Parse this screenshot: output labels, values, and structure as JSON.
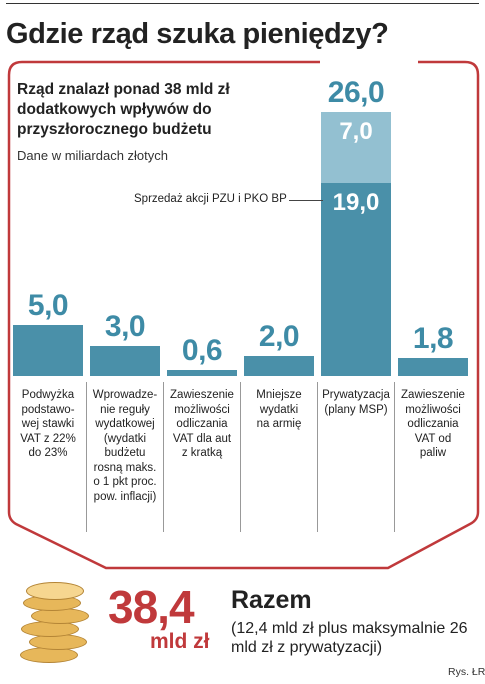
{
  "title": "Gdzie rząd szuka pieniędzy?",
  "subtitle": "Rząd znalazł ponad 38 mld zł dodatkowych wpływów do przyszłorocznego budżetu",
  "unit_note": "Dane w miliardach złotych",
  "colors": {
    "bar": "#4a90a9",
    "bar_light": "#93c0d1",
    "frame": "#c0393b",
    "value_text": "#3e8ba6",
    "coins": "#e7b75a"
  },
  "chart_data": {
    "type": "bar",
    "categories": [
      "Podwyżka podstawowej stawki VAT z 22% do 23%",
      "Wprowadzenie reguły wydatkowej (wydatki budżetu rosną maks. o 1 pkt proc. pow. inflacji)",
      "Zawieszenie możliwości odliczania VAT dla aut z kratką",
      "Mniejsze wydatki na armię",
      "Prywatyzacja (plany MSP)",
      "Zawieszenie możliwości odliczania VAT od paliw"
    ],
    "category_lines": [
      [
        "Podwyżka",
        "podstawo-",
        "wej stawki",
        "VAT z 22%",
        "do 23%"
      ],
      [
        "Wprowadze-",
        "nie reguły",
        "wydatkowej",
        "(wydatki",
        "budżetu",
        "rosną maks.",
        "o 1 pkt proc.",
        "pow. inflacji)"
      ],
      [
        "Zawieszenie",
        "możliwości",
        "odliczania",
        "VAT dla aut",
        "z kratką"
      ],
      [
        "Mniejsze",
        "wydatki",
        "na armię"
      ],
      [
        "Prywatyzacja",
        "(plany MSP)"
      ],
      [
        "Zawieszenie",
        "możliwości",
        "odliczania",
        "VAT od",
        "paliw"
      ]
    ],
    "values": [
      5.0,
      3.0,
      0.6,
      2.0,
      26.0,
      1.8
    ],
    "value_labels": [
      "5,0",
      "3,0",
      "0,6",
      "2,0",
      "26,0",
      "1,8"
    ],
    "privatization_breakdown": {
      "segments": [
        {
          "label": "Sprzedaż akcji PZU i PKO BP",
          "value": 19.0,
          "value_label": "19,0"
        },
        {
          "label": "",
          "value": 7.0,
          "value_label": "7,0"
        }
      ]
    },
    "ylim": [
      0,
      26
    ]
  },
  "total": {
    "value": "38,4",
    "unit": "mld zł",
    "label": "Razem",
    "note": "(12,4 mld zł plus maksymalnie 26 mld zł z prywatyzacji)"
  },
  "icons": [
    "coins-stack-icon"
  ],
  "source": "Rys. ŁR"
}
